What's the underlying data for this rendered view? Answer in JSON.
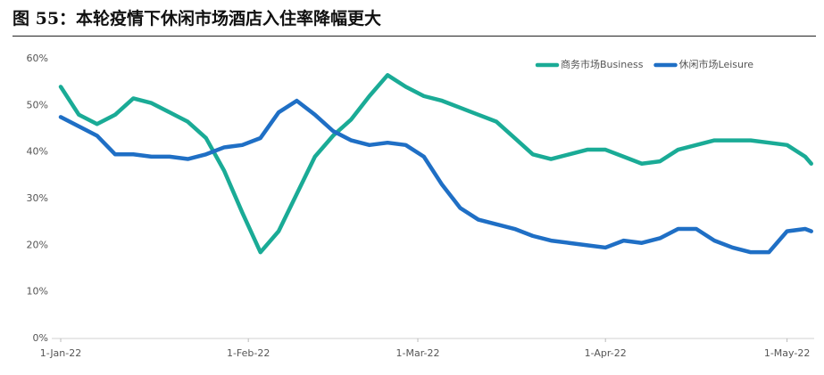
{
  "chart_data": {
    "type": "line",
    "title": "图 55：本轮疫情下休闲市场酒店入住率降幅更大",
    "x": [
      "1-Jan-22",
      "4-Jan-22",
      "7-Jan-22",
      "10-Jan-22",
      "13-Jan-22",
      "16-Jan-22",
      "19-Jan-22",
      "22-Jan-22",
      "25-Jan-22",
      "28-Jan-22",
      "31-Jan-22",
      "3-Feb-22",
      "6-Feb-22",
      "9-Feb-22",
      "12-Feb-22",
      "15-Feb-22",
      "18-Feb-22",
      "21-Feb-22",
      "24-Feb-22",
      "27-Feb-22",
      "2-Mar-22",
      "5-Mar-22",
      "8-Mar-22",
      "11-Mar-22",
      "14-Mar-22",
      "17-Mar-22",
      "20-Mar-22",
      "23-Mar-22",
      "26-Mar-22",
      "29-Mar-22",
      "1-Apr-22",
      "4-Apr-22",
      "7-Apr-22",
      "10-Apr-22",
      "13-Apr-22",
      "16-Apr-22",
      "19-Apr-22",
      "22-Apr-22",
      "25-Apr-22",
      "28-Apr-22",
      "1-May-22",
      "4-May-22",
      "5-May-22"
    ],
    "series": [
      {
        "name": "商务市场Business",
        "color": "#1aab96",
        "values": [
          54,
          48,
          46,
          48,
          51.5,
          50.5,
          48.5,
          46.5,
          43,
          36,
          27,
          18.5,
          23,
          31,
          39,
          43.5,
          47,
          52,
          56.5,
          54,
          52,
          51,
          49.5,
          48,
          46.5,
          43,
          39.5,
          38.5,
          39.5,
          40.5,
          40.5,
          39,
          37.5,
          38,
          40.5,
          41.5,
          42.5,
          42.5,
          42.5,
          42,
          41.5,
          39,
          37.5
        ]
      },
      {
        "name": "休闲市场Leisure",
        "color": "#1f6fc5",
        "values": [
          47.5,
          45.5,
          43.5,
          39.5,
          39.5,
          39,
          39,
          38.5,
          39.5,
          41,
          41.5,
          43,
          48.5,
          51,
          48,
          44.5,
          42.5,
          41.5,
          42,
          41.5,
          39,
          33,
          28,
          25.5,
          24.5,
          23.5,
          22,
          21,
          20.5,
          20,
          19.5,
          21,
          20.5,
          21.5,
          23.5,
          23.5,
          21,
          19.5,
          18.5,
          18.5,
          23,
          23.5,
          23
        ]
      }
    ],
    "xticks": [
      "1-Jan-22",
      "1-Feb-22",
      "1-Mar-22",
      "1-Apr-22",
      "1-May-22"
    ],
    "ylim": [
      0,
      60
    ],
    "yticks": [
      {
        "value": 0,
        "label": "0%"
      },
      {
        "value": 10,
        "label": "10%"
      },
      {
        "value": 20,
        "label": "20%"
      },
      {
        "value": 30,
        "label": "30%"
      },
      {
        "value": 40,
        "label": "40%"
      },
      {
        "value": 50,
        "label": "50%"
      },
      {
        "value": 60,
        "label": "60%"
      }
    ],
    "legend": "top-right"
  }
}
